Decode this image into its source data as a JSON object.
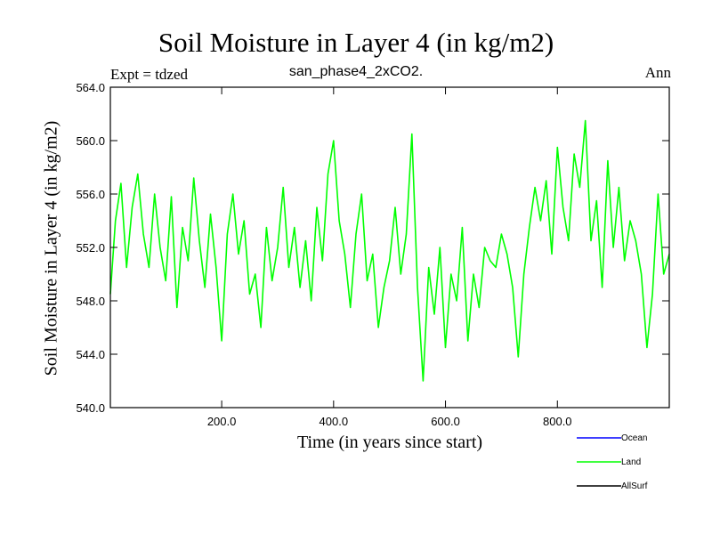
{
  "header": {
    "title": "Soil Moisture in Layer 4 (in kg/m2)",
    "subtitle": "san_phase4_2xCO2.",
    "left_label": "Expt = tdzed",
    "right_label": "Ann"
  },
  "chart_data": {
    "type": "line",
    "title": "Soil Moisture in Layer 4 (in kg/m2)",
    "subtitle": "san_phase4_2xCO2.",
    "xlabel": "Time (in years since start)",
    "ylabel": "Soil Moisture in Layer 4 (in kg/m2)",
    "xlim": [
      1,
      1000
    ],
    "ylim": [
      540.0,
      564.0
    ],
    "x_ticks": [
      200,
      400,
      600,
      800
    ],
    "x_tick_labels": [
      "200.0",
      "400.0",
      "600.0",
      "800.0"
    ],
    "y_ticks": [
      540,
      544,
      548,
      552,
      556,
      560,
      564
    ],
    "y_tick_labels": [
      "540.0",
      "544.0",
      "548.0",
      "552.0",
      "556.0",
      "560.0",
      "564.0"
    ],
    "legend_position": "bottom-right",
    "series": [
      {
        "name": "Ocean",
        "color": "#0000ff",
        "values": []
      },
      {
        "name": "Land",
        "color": "#00ff00",
        "x": [
          1,
          10,
          20,
          30,
          40,
          50,
          60,
          70,
          80,
          90,
          100,
          110,
          120,
          130,
          140,
          150,
          160,
          170,
          180,
          190,
          200,
          210,
          220,
          230,
          240,
          250,
          260,
          270,
          280,
          290,
          300,
          310,
          320,
          330,
          340,
          350,
          360,
          370,
          380,
          390,
          400,
          410,
          420,
          430,
          440,
          450,
          460,
          470,
          480,
          490,
          500,
          510,
          520,
          530,
          540,
          550,
          560,
          570,
          580,
          590,
          600,
          610,
          620,
          630,
          640,
          650,
          660,
          670,
          680,
          690,
          700,
          710,
          720,
          730,
          740,
          750,
          760,
          770,
          780,
          790,
          800,
          810,
          820,
          830,
          840,
          850,
          860,
          870,
          880,
          890,
          900,
          910,
          920,
          930,
          940,
          950,
          960,
          970,
          980,
          990,
          1000
        ],
        "values": [
          548.5,
          554.0,
          556.8,
          550.5,
          555.0,
          557.5,
          553.0,
          550.5,
          556.0,
          552.0,
          549.5,
          555.8,
          547.5,
          553.5,
          551.0,
          557.2,
          552.5,
          549.0,
          554.5,
          550.5,
          545.0,
          553.0,
          556.0,
          551.5,
          554.0,
          548.5,
          550.0,
          546.0,
          553.5,
          549.5,
          552.0,
          556.5,
          550.5,
          553.5,
          549.0,
          552.5,
          548.0,
          555.0,
          551.0,
          557.5,
          560.0,
          554.0,
          551.5,
          547.5,
          553.0,
          556.0,
          549.5,
          551.5,
          546.0,
          549.0,
          551.0,
          555.0,
          550.0,
          553.0,
          560.5,
          549.0,
          542.0,
          550.5,
          547.0,
          552.0,
          544.5,
          550.0,
          548.0,
          553.5,
          545.0,
          550.0,
          547.5,
          552.0,
          551.0,
          550.5,
          553.0,
          551.5,
          549.0,
          543.8,
          550.0,
          553.5,
          556.5,
          554.0,
          557.0,
          551.5,
          559.5,
          555.0,
          552.5,
          559.0,
          556.5,
          561.5,
          552.5,
          555.5,
          549.0,
          558.5,
          552.0,
          556.5,
          551.0,
          554.0,
          552.5,
          550.0,
          544.5,
          548.5,
          556.0,
          550.0,
          551.5
        ]
      },
      {
        "name": "AllSurf",
        "color": "#000000",
        "values": []
      }
    ]
  }
}
